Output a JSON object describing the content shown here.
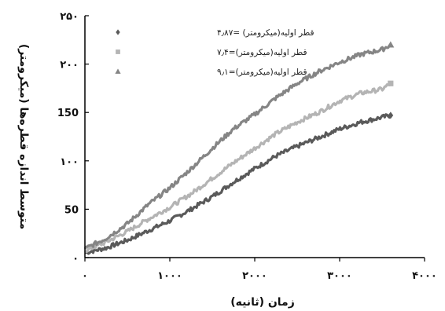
{
  "chart_data": {
    "type": "line",
    "xlabel": "زمان (ثانیه)",
    "ylabel": "متوسط اندازه قطره‌ها (میکرومتر)",
    "xlim": [
      0,
      4000
    ],
    "ylim": [
      0,
      250
    ],
    "x_ticks": [
      0,
      1000,
      2000,
      3000,
      4000
    ],
    "x_tick_labels": [
      "۰",
      "۱۰۰۰",
      "۲۰۰۰",
      "۳۰۰۰",
      "۴۰۰۰"
    ],
    "y_ticks": [
      0,
      50,
      100,
      150,
      200,
      250
    ],
    "y_tick_labels": [
      "۰",
      "50",
      "۱۰۰",
      "150",
      "۲۰۰",
      "۲۵۰"
    ],
    "grid": false,
    "legend_position": "top-left",
    "series": [
      {
        "name": "قطر اولیه(میکرومتر) =۴٫۸۷",
        "color": "#5a5a5a",
        "marker": "diamond",
        "x": [
          0,
          250,
          500,
          750,
          1000,
          1250,
          1500,
          1750,
          2000,
          2250,
          2500,
          2750,
          3000,
          3250,
          3500,
          3600
        ],
        "y": [
          5,
          10,
          18,
          28,
          38,
          50,
          63,
          78,
          92,
          105,
          115,
          124,
          133,
          140,
          145,
          147
        ]
      },
      {
        "name": "قطر اولیه(میکرومتر)=۷٫۴",
        "color": "#b4b4b4",
        "marker": "square",
        "x": [
          0,
          250,
          500,
          750,
          1000,
          1250,
          1500,
          1750,
          2000,
          2250,
          2500,
          2750,
          3000,
          3250,
          3500,
          3600
        ],
        "y": [
          7,
          16,
          27,
          40,
          52,
          66,
          82,
          98,
          113,
          128,
          140,
          150,
          162,
          170,
          174,
          180
        ]
      },
      {
        "name": "قطر اولیه(میکرومتر)=۹٫۱",
        "color": "#858585",
        "marker": "triangle",
        "x": [
          0,
          250,
          500,
          750,
          1000,
          1250,
          1500,
          1750,
          2000,
          2250,
          2500,
          2750,
          3000,
          3250,
          3500,
          3600
        ],
        "y": [
          9,
          20,
          35,
          55,
          72,
          92,
          113,
          133,
          148,
          165,
          180,
          192,
          202,
          210,
          215,
          220
        ]
      }
    ]
  }
}
